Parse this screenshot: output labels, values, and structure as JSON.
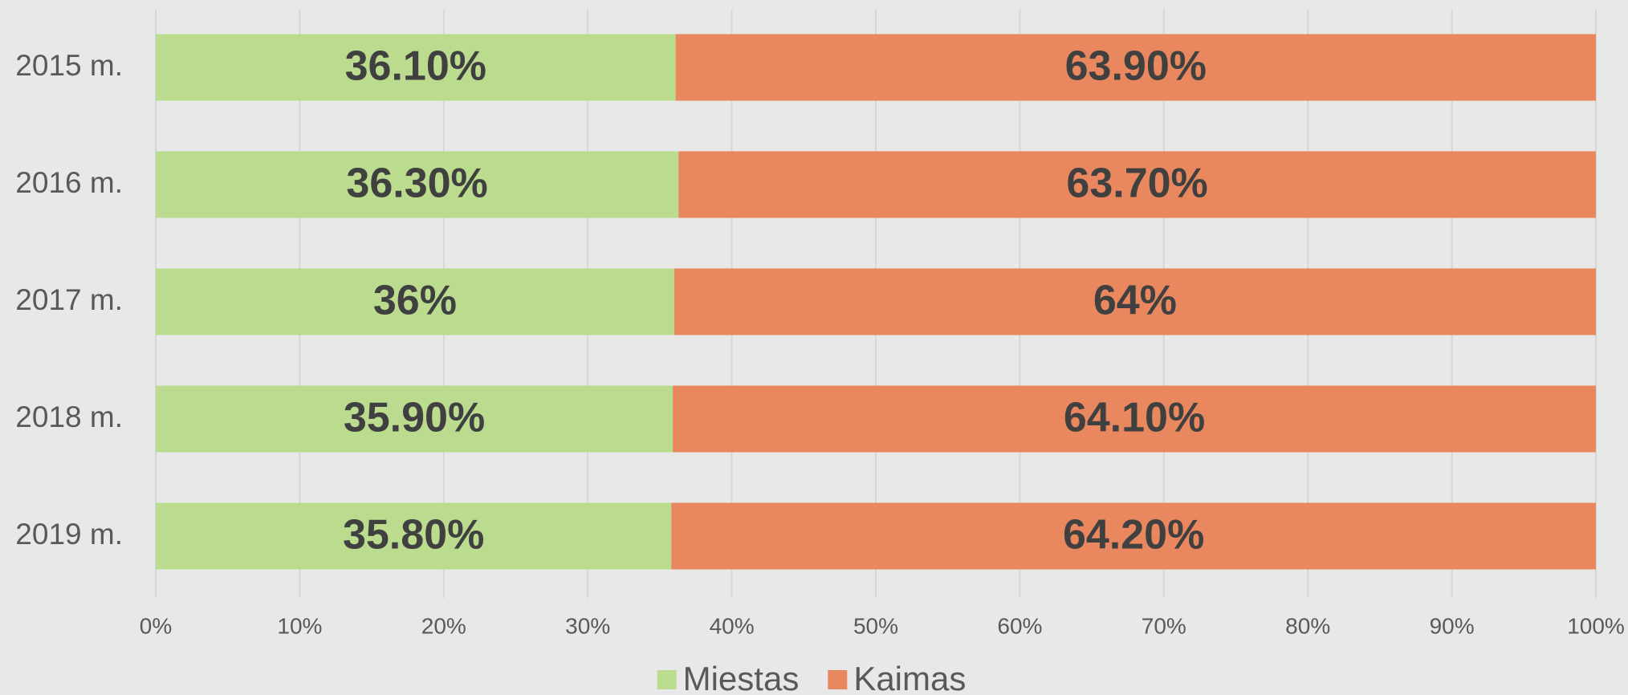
{
  "chart_data": {
    "type": "stacked-barh",
    "categories": [
      "2015 m.",
      "2016 m.",
      "2017 m.",
      "2018 m.",
      "2019 m."
    ],
    "series": [
      {
        "name": "Miestas",
        "color": "#bbdb8f",
        "values": [
          36.1,
          36.3,
          36,
          35.9,
          35.8
        ],
        "value_labels": [
          "36.10%",
          "36.30%",
          "36%",
          "35.90%",
          "35.80%"
        ]
      },
      {
        "name": "Kaimas",
        "color": "#e9885e",
        "values": [
          63.9,
          63.7,
          64,
          64.1,
          64.2
        ],
        "value_labels": [
          "63.90%",
          "63.70%",
          "64%",
          "64.10%",
          "64.20%"
        ]
      }
    ],
    "xlim": [
      0,
      100
    ],
    "xticks": [
      {
        "value": 0,
        "label": "0%"
      },
      {
        "value": 10,
        "label": "10%"
      },
      {
        "value": 20,
        "label": "20%"
      },
      {
        "value": 30,
        "label": "30%"
      },
      {
        "value": 40,
        "label": "40%"
      },
      {
        "value": 50,
        "label": "50%"
      },
      {
        "value": 60,
        "label": "60%"
      },
      {
        "value": 70,
        "label": "70%"
      },
      {
        "value": 80,
        "label": "80%"
      },
      {
        "value": 90,
        "label": "90%"
      },
      {
        "value": 100,
        "label": "100%"
      }
    ],
    "grid": true,
    "legend": "bottom"
  }
}
